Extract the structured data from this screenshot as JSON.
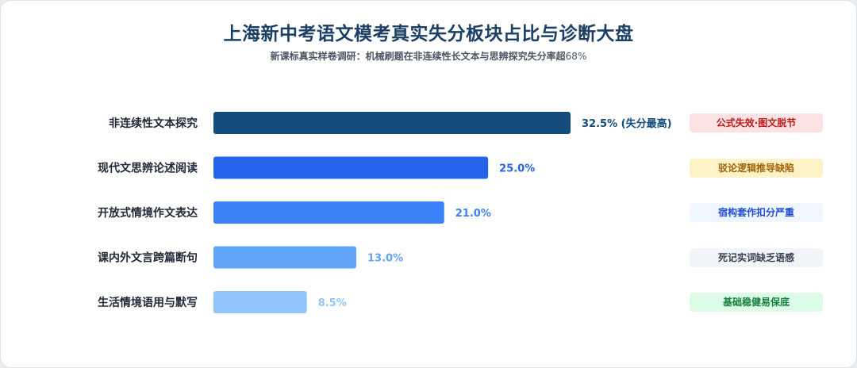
{
  "header": {
    "title": "上海新中考语文模考真实失分板块占比与诊断大盘",
    "subtitle_text": "新课标真实样卷调研：机械刷题在非连续性长文本与思辨探究失分率超",
    "subtitle_pct": "68%"
  },
  "chart_data": {
    "type": "bar",
    "orientation": "horizontal",
    "title": "上海新中考语文模考真实失分板块占比与诊断大盘",
    "subtitle": "新课标真实样卷调研：机械刷题在非连续性长文本与思辨探究失分率超68%",
    "xlim": [
      0,
      40
    ],
    "grid": false,
    "unit": "%",
    "categories": [
      "非连续性文本探究",
      "现代文思辨论述阅读",
      "开放式情境作文表达",
      "课内外文言跨篇断句",
      "生活情境语用与默写"
    ],
    "values": [
      32.5,
      25.0,
      21.0,
      13.0,
      8.5
    ],
    "value_labels": [
      "32.5% (失分最高)",
      "25.0%",
      "21.0%",
      "13.0%",
      "8.5%"
    ],
    "colors": [
      "#134b7c",
      "#2563eb",
      "#3b82f6",
      "#60a5fa",
      "#93c5fd"
    ]
  },
  "diagnosis_tags": [
    {
      "label": "公式失效·图文脱节",
      "bg": "#fde2e4",
      "color": "#b91c1c"
    },
    {
      "label": "驳论逻辑推导缺陷",
      "bg": "#fef3c7",
      "color": "#a16207"
    },
    {
      "label": "宿构套作扣分严重",
      "bg": "#eff6ff",
      "color": "#1d4ed8"
    },
    {
      "label": "死记实词缺乏语感",
      "bg": "#f1f5f9",
      "color": "#374151"
    },
    {
      "label": "基础稳健易保底",
      "bg": "#dcfce7",
      "color": "#15803d"
    }
  ]
}
